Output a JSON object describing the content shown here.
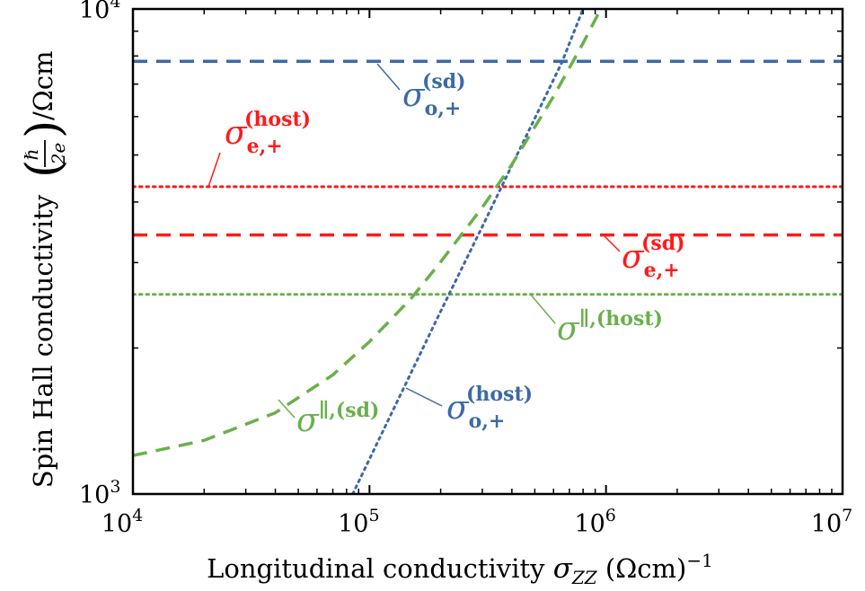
{
  "chart_data": {
    "type": "line",
    "xscale": "log",
    "yscale": "log",
    "xlim": [
      10000,
      10000000
    ],
    "ylim": [
      1000,
      10000
    ],
    "x_ticks": [
      10000,
      100000,
      1000000,
      10000000
    ],
    "y_ticks": [
      1000,
      10000
    ],
    "tick_labels": {
      "x": [
        {
          "base": "10",
          "exp": "4"
        },
        {
          "base": "10",
          "exp": "5"
        },
        {
          "base": "10",
          "exp": "6"
        },
        {
          "base": "10",
          "exp": "7"
        }
      ],
      "y": [
        {
          "base": "10",
          "exp": "3"
        },
        {
          "base": "10",
          "exp": "4"
        }
      ]
    },
    "xlabel": {
      "text": "Longitudinal conductivity ",
      "symbol": "σ",
      "subscript": "ZZ",
      "unit": " (Ωcm)",
      "unit_exp": "−1"
    },
    "ylabel": {
      "text": "Spin Hall conductivity ",
      "frac_num": "ℏ",
      "frac_den": "2e",
      "unit": " /Ωcm"
    },
    "grid": false,
    "series": [
      {
        "name": "σ_o,+^(sd)",
        "color": "#3b6aa8",
        "dash": "dashed",
        "x": [
          10000,
          10000000
        ],
        "y": [
          7800,
          7800
        ]
      },
      {
        "name": "σ_e,+^(host)",
        "color": "#ff1a1a",
        "dash": "dotted",
        "x": [
          10000,
          10000000
        ],
        "y": [
          4300,
          4300
        ]
      },
      {
        "name": "σ_e,+^(sd)",
        "color": "#ff1a1a",
        "dash": "dashed",
        "x": [
          10000,
          10000000
        ],
        "y": [
          3420,
          3420
        ]
      },
      {
        "name": "σ^∥,(host)",
        "color": "#6ab04c",
        "dash": "dotted",
        "x": [
          10000,
          10000000
        ],
        "y": [
          2580,
          2580
        ]
      },
      {
        "name": "σ_o,+^(host)",
        "color": "#3b6aa8",
        "dash": "dotted",
        "x": [
          85000,
          100000,
          200000,
          300000,
          400000,
          500000,
          650000,
          800000
        ],
        "y": [
          1000,
          1180,
          2380,
          3560,
          4760,
          5950,
          7750,
          10000
        ]
      },
      {
        "name": "σ^∥,(sd)",
        "color": "#6ab04c",
        "dash": "dashed",
        "x": [
          10000,
          20000,
          40000,
          70000,
          100000,
          150000,
          200000,
          300000,
          400000,
          600000,
          800000,
          950000
        ],
        "y": [
          1200,
          1290,
          1470,
          1760,
          2060,
          2530,
          3010,
          3900,
          4780,
          6600,
          8500,
          10000
        ]
      }
    ],
    "annotations": [
      {
        "symbol": "σ",
        "subscript": "o,+",
        "superscript": "(sd)",
        "color": "#3b6aa8"
      },
      {
        "symbol": "σ",
        "subscript": "e,+",
        "superscript": "(host)",
        "color": "#ff1a1a"
      },
      {
        "symbol": "σ",
        "subscript": "e,+",
        "superscript": "(sd)",
        "color": "#ff1a1a"
      },
      {
        "symbol": "σ",
        "subscript": "",
        "superscript": "∥,(host)",
        "color": "#6ab04c"
      },
      {
        "symbol": "σ",
        "subscript": "o,+",
        "superscript": "(host)",
        "color": "#3b6aa8"
      },
      {
        "symbol": "σ",
        "subscript": "",
        "superscript": "∥,(sd)",
        "color": "#6ab04c"
      }
    ]
  }
}
